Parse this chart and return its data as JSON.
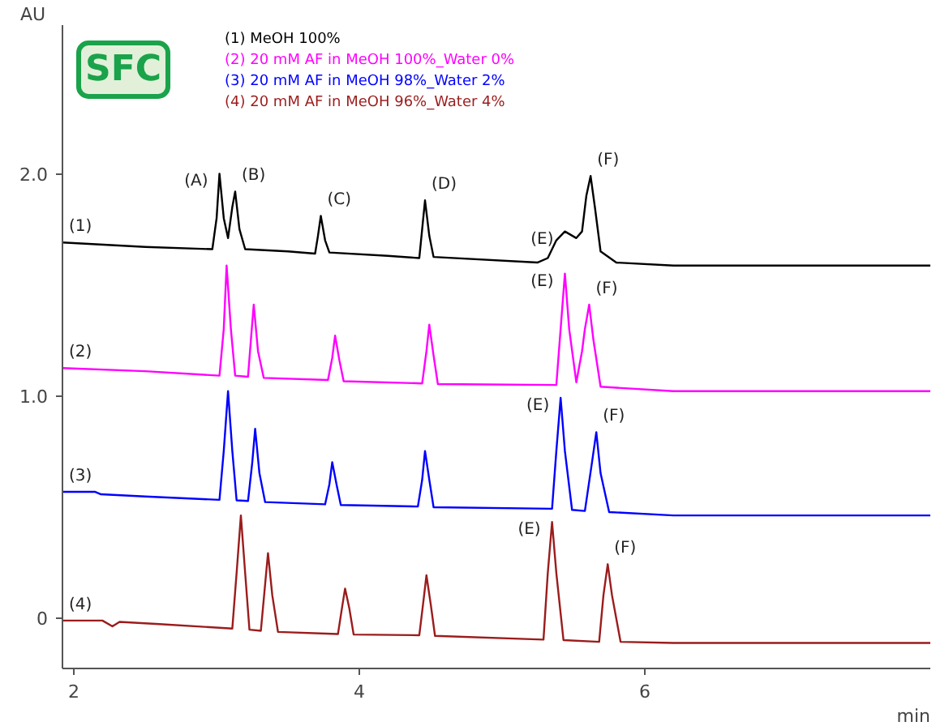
{
  "chart_data": {
    "type": "line",
    "xlabel": "min",
    "ylabel": "AU",
    "xlim": [
      1.92,
      8.0
    ],
    "ylim": [
      -0.23,
      2.67
    ],
    "xticks": [
      2,
      4,
      6
    ],
    "yticks": [
      0,
      {
        "value": 1,
        "label": "1.0"
      },
      {
        "value": 2,
        "label": "2.0"
      }
    ],
    "grid": false,
    "legend": "top left",
    "marker": "none",
    "line_style": "solid",
    "series": [
      {
        "name": "(1) MeOH 100%",
        "color": "#000000",
        "x": [
          1.92,
          2.5,
          2.97,
          3.0,
          3.02,
          3.05,
          3.08,
          3.11,
          3.13,
          3.16,
          3.2,
          3.5,
          3.69,
          3.71,
          3.73,
          3.76,
          3.79,
          4.2,
          4.42,
          4.44,
          4.46,
          4.49,
          4.52,
          5.25,
          5.32,
          5.38,
          5.44,
          5.52,
          5.56,
          5.59,
          5.62,
          5.65,
          5.69,
          5.8,
          6.2,
          8.0
        ],
        "values": [
          1.69,
          1.67,
          1.66,
          1.8,
          2.0,
          1.8,
          1.71,
          1.85,
          1.92,
          1.75,
          1.66,
          1.65,
          1.64,
          1.72,
          1.81,
          1.7,
          1.645,
          1.63,
          1.62,
          1.75,
          1.88,
          1.72,
          1.625,
          1.6,
          1.62,
          1.7,
          1.74,
          1.71,
          1.74,
          1.9,
          1.99,
          1.85,
          1.65,
          1.6,
          1.586,
          1.586
        ]
      },
      {
        "name": "(2) 20 mM AF in MeOH 100%_Water 0%",
        "color": "#ff00ff",
        "x": [
          1.92,
          2.5,
          3.02,
          3.05,
          3.07,
          3.1,
          3.13,
          3.22,
          3.24,
          3.26,
          3.29,
          3.33,
          3.78,
          3.81,
          3.83,
          3.86,
          3.89,
          4.44,
          4.47,
          4.49,
          4.52,
          4.55,
          5.38,
          5.41,
          5.44,
          5.47,
          5.52,
          5.56,
          5.58,
          5.61,
          5.64,
          5.69,
          6.2,
          8.0
        ],
        "values": [
          1.124,
          1.11,
          1.09,
          1.3,
          1.586,
          1.3,
          1.09,
          1.085,
          1.25,
          1.41,
          1.2,
          1.08,
          1.07,
          1.17,
          1.27,
          1.16,
          1.065,
          1.055,
          1.2,
          1.32,
          1.18,
          1.052,
          1.048,
          1.3,
          1.55,
          1.3,
          1.06,
          1.2,
          1.3,
          1.41,
          1.25,
          1.04,
          1.02,
          1.02
        ]
      },
      {
        "name": "(3) 20 mM AF in MeOH 98%_Water 2%",
        "color": "#0000ff",
        "x": [
          1.92,
          2.15,
          2.19,
          2.5,
          3.02,
          3.05,
          3.08,
          3.11,
          3.14,
          3.22,
          3.25,
          3.27,
          3.3,
          3.34,
          3.76,
          3.79,
          3.81,
          3.84,
          3.87,
          4.41,
          4.44,
          4.46,
          4.49,
          4.52,
          5.35,
          5.38,
          5.41,
          5.44,
          5.49,
          5.58,
          5.63,
          5.66,
          5.69,
          5.75,
          6.2,
          8.0
        ],
        "values": [
          0.566,
          0.566,
          0.555,
          0.545,
          0.53,
          0.75,
          1.02,
          0.75,
          0.528,
          0.525,
          0.7,
          0.85,
          0.65,
          0.52,
          0.51,
          0.6,
          0.7,
          0.6,
          0.507,
          0.5,
          0.62,
          0.75,
          0.62,
          0.497,
          0.49,
          0.75,
          0.99,
          0.75,
          0.485,
          0.48,
          0.7,
          0.835,
          0.65,
          0.475,
          0.46,
          0.46
        ]
      },
      {
        "name": "(4) 20 mM AF in MeOH 96%_Water 4%",
        "color": "#9b1c1c",
        "x": [
          1.92,
          2.2,
          2.27,
          2.32,
          2.6,
          3.11,
          3.14,
          3.17,
          3.2,
          3.23,
          3.31,
          3.34,
          3.36,
          3.39,
          3.43,
          3.85,
          3.88,
          3.9,
          3.93,
          3.96,
          4.42,
          4.45,
          4.47,
          4.5,
          4.53,
          5.29,
          5.32,
          5.35,
          5.38,
          5.43,
          5.68,
          5.71,
          5.74,
          5.77,
          5.83,
          6.2,
          8.0
        ],
        "values": [
          -0.014,
          -0.014,
          -0.04,
          -0.02,
          -0.03,
          -0.05,
          0.2,
          0.46,
          0.2,
          -0.055,
          -0.06,
          0.15,
          0.29,
          0.1,
          -0.065,
          -0.075,
          0.05,
          0.13,
          0.04,
          -0.077,
          -0.08,
          0.08,
          0.19,
          0.06,
          -0.083,
          -0.1,
          0.2,
          0.43,
          0.2,
          -0.102,
          -0.11,
          0.1,
          0.24,
          0.1,
          -0.11,
          -0.115,
          -0.115
        ]
      }
    ],
    "annotations": [
      "SFC",
      {
        "text": "(A)",
        "x": 3.02,
        "y": 2.0
      },
      {
        "text": "(B)",
        "x": 3.13,
        "y": 1.92
      },
      {
        "text": "(C)",
        "x": 3.73,
        "y": 1.81
      },
      {
        "text": "(D)",
        "x": 4.46,
        "y": 1.88
      },
      {
        "text": "(E)",
        "x": 5.44,
        "y": 1.74
      },
      {
        "text": "(F)",
        "x": 5.62,
        "y": 1.99
      },
      {
        "text": "(E)",
        "x": 5.44,
        "y": 1.55
      },
      {
        "text": "(F)",
        "x": 5.61,
        "y": 1.41
      },
      {
        "text": "(E)",
        "x": 5.41,
        "y": 0.99
      },
      {
        "text": "(F)",
        "x": 5.66,
        "y": 0.835
      },
      {
        "text": "(E)",
        "x": 5.35,
        "y": 0.43
      },
      {
        "text": "(F)",
        "x": 5.74,
        "y": 0.24
      },
      {
        "text": "(1)",
        "x": 1.92,
        "y": 1.69
      },
      {
        "text": "(2)",
        "x": 1.92,
        "y": 1.124
      },
      {
        "text": "(3)",
        "x": 1.92,
        "y": 0.566
      },
      {
        "text": "(4)",
        "x": 1.92,
        "y": -0.014
      }
    ]
  }
}
